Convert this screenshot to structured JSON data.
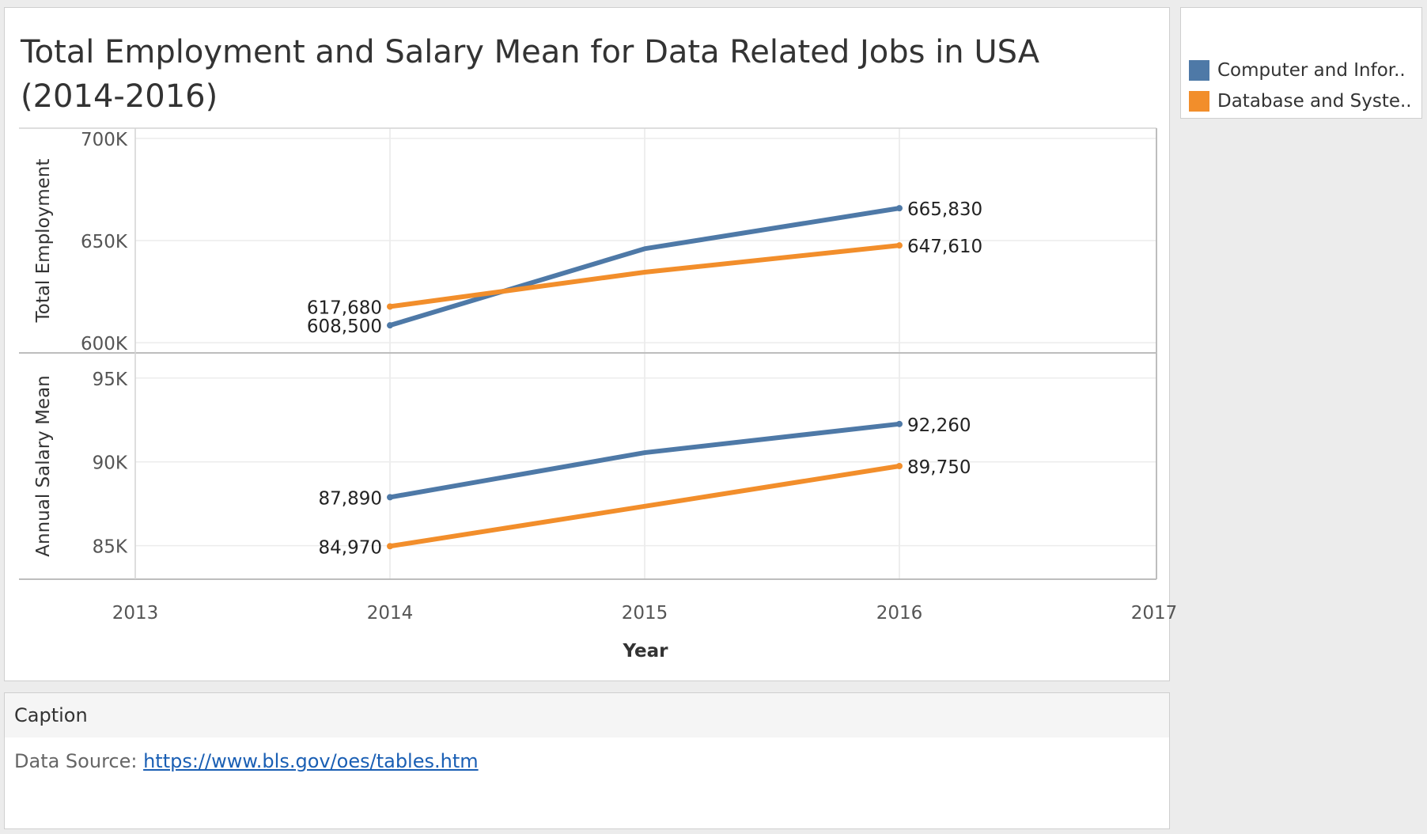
{
  "caption": {
    "header": "Caption",
    "source_prefix": "Data Source: ",
    "source_link": "https://www.bls.gov/oes/tables.htm"
  },
  "chart_data": {
    "type": "line",
    "title": "Total Employment and Salary Mean for Data Related Jobs in USA (2014-2016)",
    "xlabel": "Year",
    "x_ticks": [
      "2013",
      "2014",
      "2015",
      "2016",
      "2017"
    ],
    "xlim": [
      2013,
      2017
    ],
    "grid": true,
    "legend_placement": "top-right",
    "legend": [
      {
        "label": "Computer and Infor..",
        "color": "#4e79a7"
      },
      {
        "label": "Database and Syste..",
        "color": "#f28e2b"
      }
    ],
    "panels": [
      {
        "ylabel": "Total Employment",
        "ylim": [
          595000,
          705000
        ],
        "y_ticks": [
          {
            "value": 600000,
            "label": "600K"
          },
          {
            "value": 650000,
            "label": "650K"
          },
          {
            "value": 700000,
            "label": "700K"
          }
        ],
        "series": [
          {
            "color": "#4e79a7",
            "x": [
              2014,
              2015,
              2016
            ],
            "values": [
              608500,
              646000,
              665830
            ],
            "labels": [
              "608,500",
              "",
              "665,830"
            ]
          },
          {
            "color": "#f28e2b",
            "x": [
              2014,
              2015,
              2016
            ],
            "values": [
              617680,
              634500,
              647610
            ],
            "labels": [
              "617,680",
              "",
              "647,610"
            ]
          }
        ]
      },
      {
        "ylabel": "Annual Salary Mean",
        "ylim": [
          83000,
          96500
        ],
        "y_ticks": [
          {
            "value": 85000,
            "label": "85K"
          },
          {
            "value": 90000,
            "label": "90K"
          },
          {
            "value": 95000,
            "label": "95K"
          }
        ],
        "series": [
          {
            "color": "#4e79a7",
            "x": [
              2014,
              2015,
              2016
            ],
            "values": [
              87890,
              90550,
              92260
            ],
            "labels": [
              "87,890",
              "",
              "92,260"
            ]
          },
          {
            "color": "#f28e2b",
            "x": [
              2014,
              2015,
              2016
            ],
            "values": [
              84970,
              87350,
              89750
            ],
            "labels": [
              "84,970",
              "",
              "89,750"
            ]
          }
        ]
      }
    ]
  }
}
